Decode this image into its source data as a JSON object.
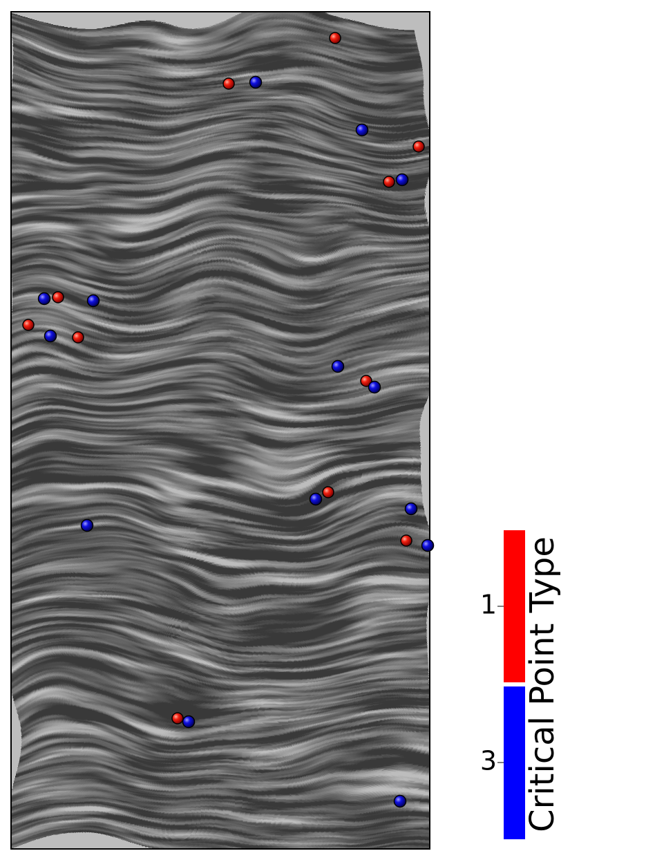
{
  "legend": {
    "title": "Critical Point Type",
    "entries": [
      {
        "label": "1",
        "color": "#ff0000"
      },
      {
        "label": "3",
        "color": "#0000ff"
      }
    ]
  }
}
